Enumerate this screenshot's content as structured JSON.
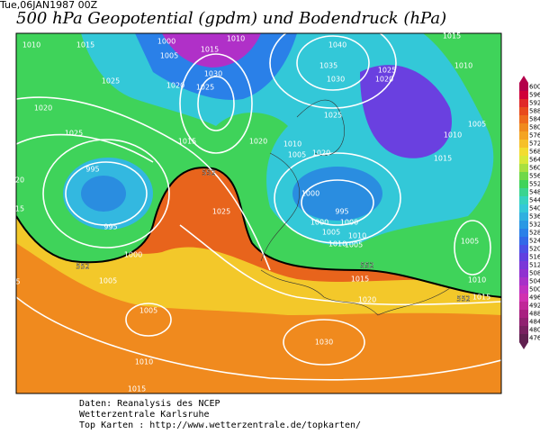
{
  "header": {
    "date": "Tue,06JAN1987 00Z",
    "title": "500 hPa Geopotential (gpdm) und Bodendruck (hPa)"
  },
  "colorbar": {
    "labels": [
      "600",
      "596",
      "592",
      "588",
      "584",
      "580",
      "576",
      "572",
      "568",
      "564",
      "560",
      "556",
      "552",
      "548",
      "544",
      "540",
      "536",
      "532",
      "528",
      "524",
      "520",
      "516",
      "512",
      "508",
      "504",
      "500",
      "496",
      "492",
      "488",
      "484",
      "480",
      "476"
    ]
  },
  "isobar_labels": [
    "1010",
    "1015",
    "1000",
    "1005",
    "1015",
    "1010",
    "1040",
    "1015",
    "1010",
    "1035",
    "1025",
    "1030",
    "1020",
    "1025",
    "1020",
    "1030",
    "1025",
    "1020",
    "1025",
    "1005",
    "1025",
    "1010",
    "1015",
    "1020",
    "1010",
    "1005",
    "1020",
    "1015",
    "995",
    "1000",
    "995",
    "1025",
    "995",
    "1000",
    "1000",
    "1005",
    "1010",
    "1005",
    "1010",
    "1005",
    "1000",
    "1010",
    "1015",
    "1005",
    "1015",
    "1020",
    "1005",
    "1010",
    "1030",
    "1015",
    "20",
    "15",
    "5"
  ],
  "contour_labels": [
    "552",
    "552",
    "552",
    "552"
  ],
  "footer": {
    "line1": "Daten: Reanalysis des NCEP",
    "line2": "Wetterzentrale Karlsruhe",
    "line3": "Top Karten :  http://www.wetterzentrale.de/topkarten/"
  }
}
